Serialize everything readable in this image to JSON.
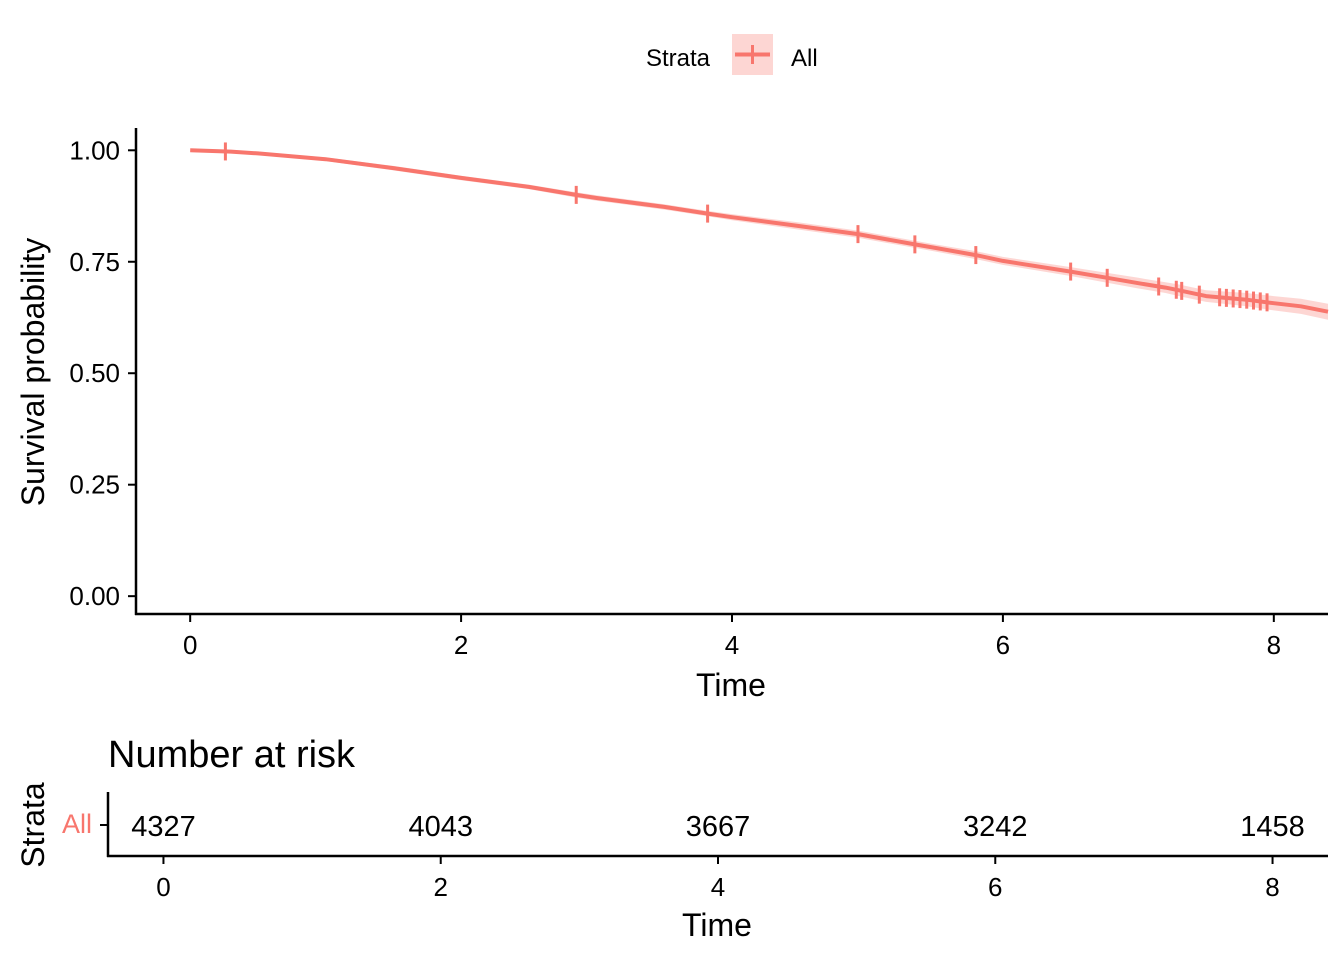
{
  "legend": {
    "title": "Strata",
    "label": "All"
  },
  "colors": {
    "curve": "#F8766D",
    "ci_band": "#F8766D",
    "axis": "#000000",
    "text": "#000000"
  },
  "chart_data": [
    {
      "type": "line",
      "chart_kind": "kaplan-meier survival curve",
      "xlabel": "Time",
      "ylabel": "Survival probability",
      "xlim": [
        -0.4,
        8.4
      ],
      "ylim": [
        -0.04,
        1.05
      ],
      "x_ticks": [
        0,
        2,
        4,
        6,
        8
      ],
      "y_ticks": [
        0.0,
        0.25,
        0.5,
        0.75,
        1.0
      ],
      "y_tick_labels": [
        "0.00",
        "0.25",
        "0.50",
        "0.75",
        "1.00"
      ],
      "grid": false,
      "legend_position": "top",
      "series": [
        {
          "name": "All",
          "x": [
            0,
            0.3,
            0.5,
            1.0,
            1.5,
            2.0,
            2.5,
            2.85,
            3.0,
            3.5,
            3.82,
            4.0,
            4.5,
            4.93,
            5.0,
            5.35,
            5.5,
            5.8,
            6.0,
            6.5,
            6.77,
            7.0,
            7.2,
            7.3,
            7.5,
            7.8,
            8.0,
            8.2,
            8.4
          ],
          "y": [
            1.0,
            0.997,
            0.993,
            0.98,
            0.96,
            0.938,
            0.918,
            0.9,
            0.893,
            0.873,
            0.858,
            0.85,
            0.83,
            0.812,
            0.808,
            0.789,
            0.781,
            0.765,
            0.752,
            0.728,
            0.714,
            0.702,
            0.692,
            0.686,
            0.673,
            0.665,
            0.657,
            0.65,
            0.638
          ],
          "ci_lower": [
            1.0,
            0.995,
            0.99,
            0.976,
            0.955,
            0.933,
            0.913,
            0.894,
            0.887,
            0.867,
            0.852,
            0.843,
            0.822,
            0.804,
            0.8,
            0.781,
            0.773,
            0.756,
            0.743,
            0.718,
            0.703,
            0.69,
            0.68,
            0.673,
            0.66,
            0.65,
            0.641,
            0.633,
            0.62
          ],
          "ci_upper": [
            1.0,
            0.999,
            0.996,
            0.984,
            0.965,
            0.943,
            0.923,
            0.906,
            0.899,
            0.879,
            0.864,
            0.857,
            0.838,
            0.82,
            0.816,
            0.797,
            0.789,
            0.774,
            0.761,
            0.738,
            0.725,
            0.714,
            0.704,
            0.699,
            0.686,
            0.68,
            0.673,
            0.667,
            0.656
          ],
          "censor_x": [
            0.26,
            2.85,
            3.82,
            4.93,
            5.35,
            5.8,
            6.5,
            6.77,
            7.15,
            7.28,
            7.32,
            7.45,
            7.6,
            7.65,
            7.7,
            7.75,
            7.8,
            7.85,
            7.9,
            7.95
          ]
        }
      ]
    },
    {
      "type": "table",
      "title": "Number at risk",
      "ylabel": "Strata",
      "xlabel": "Time",
      "xlim": [
        -0.4,
        8.4
      ],
      "x_ticks": [
        0,
        2,
        4,
        6,
        8
      ],
      "rows": [
        {
          "label": "All",
          "x": [
            0,
            2,
            4,
            6,
            8
          ],
          "values": [
            "4327",
            "4043",
            "3667",
            "3242",
            "1458"
          ]
        }
      ]
    }
  ]
}
